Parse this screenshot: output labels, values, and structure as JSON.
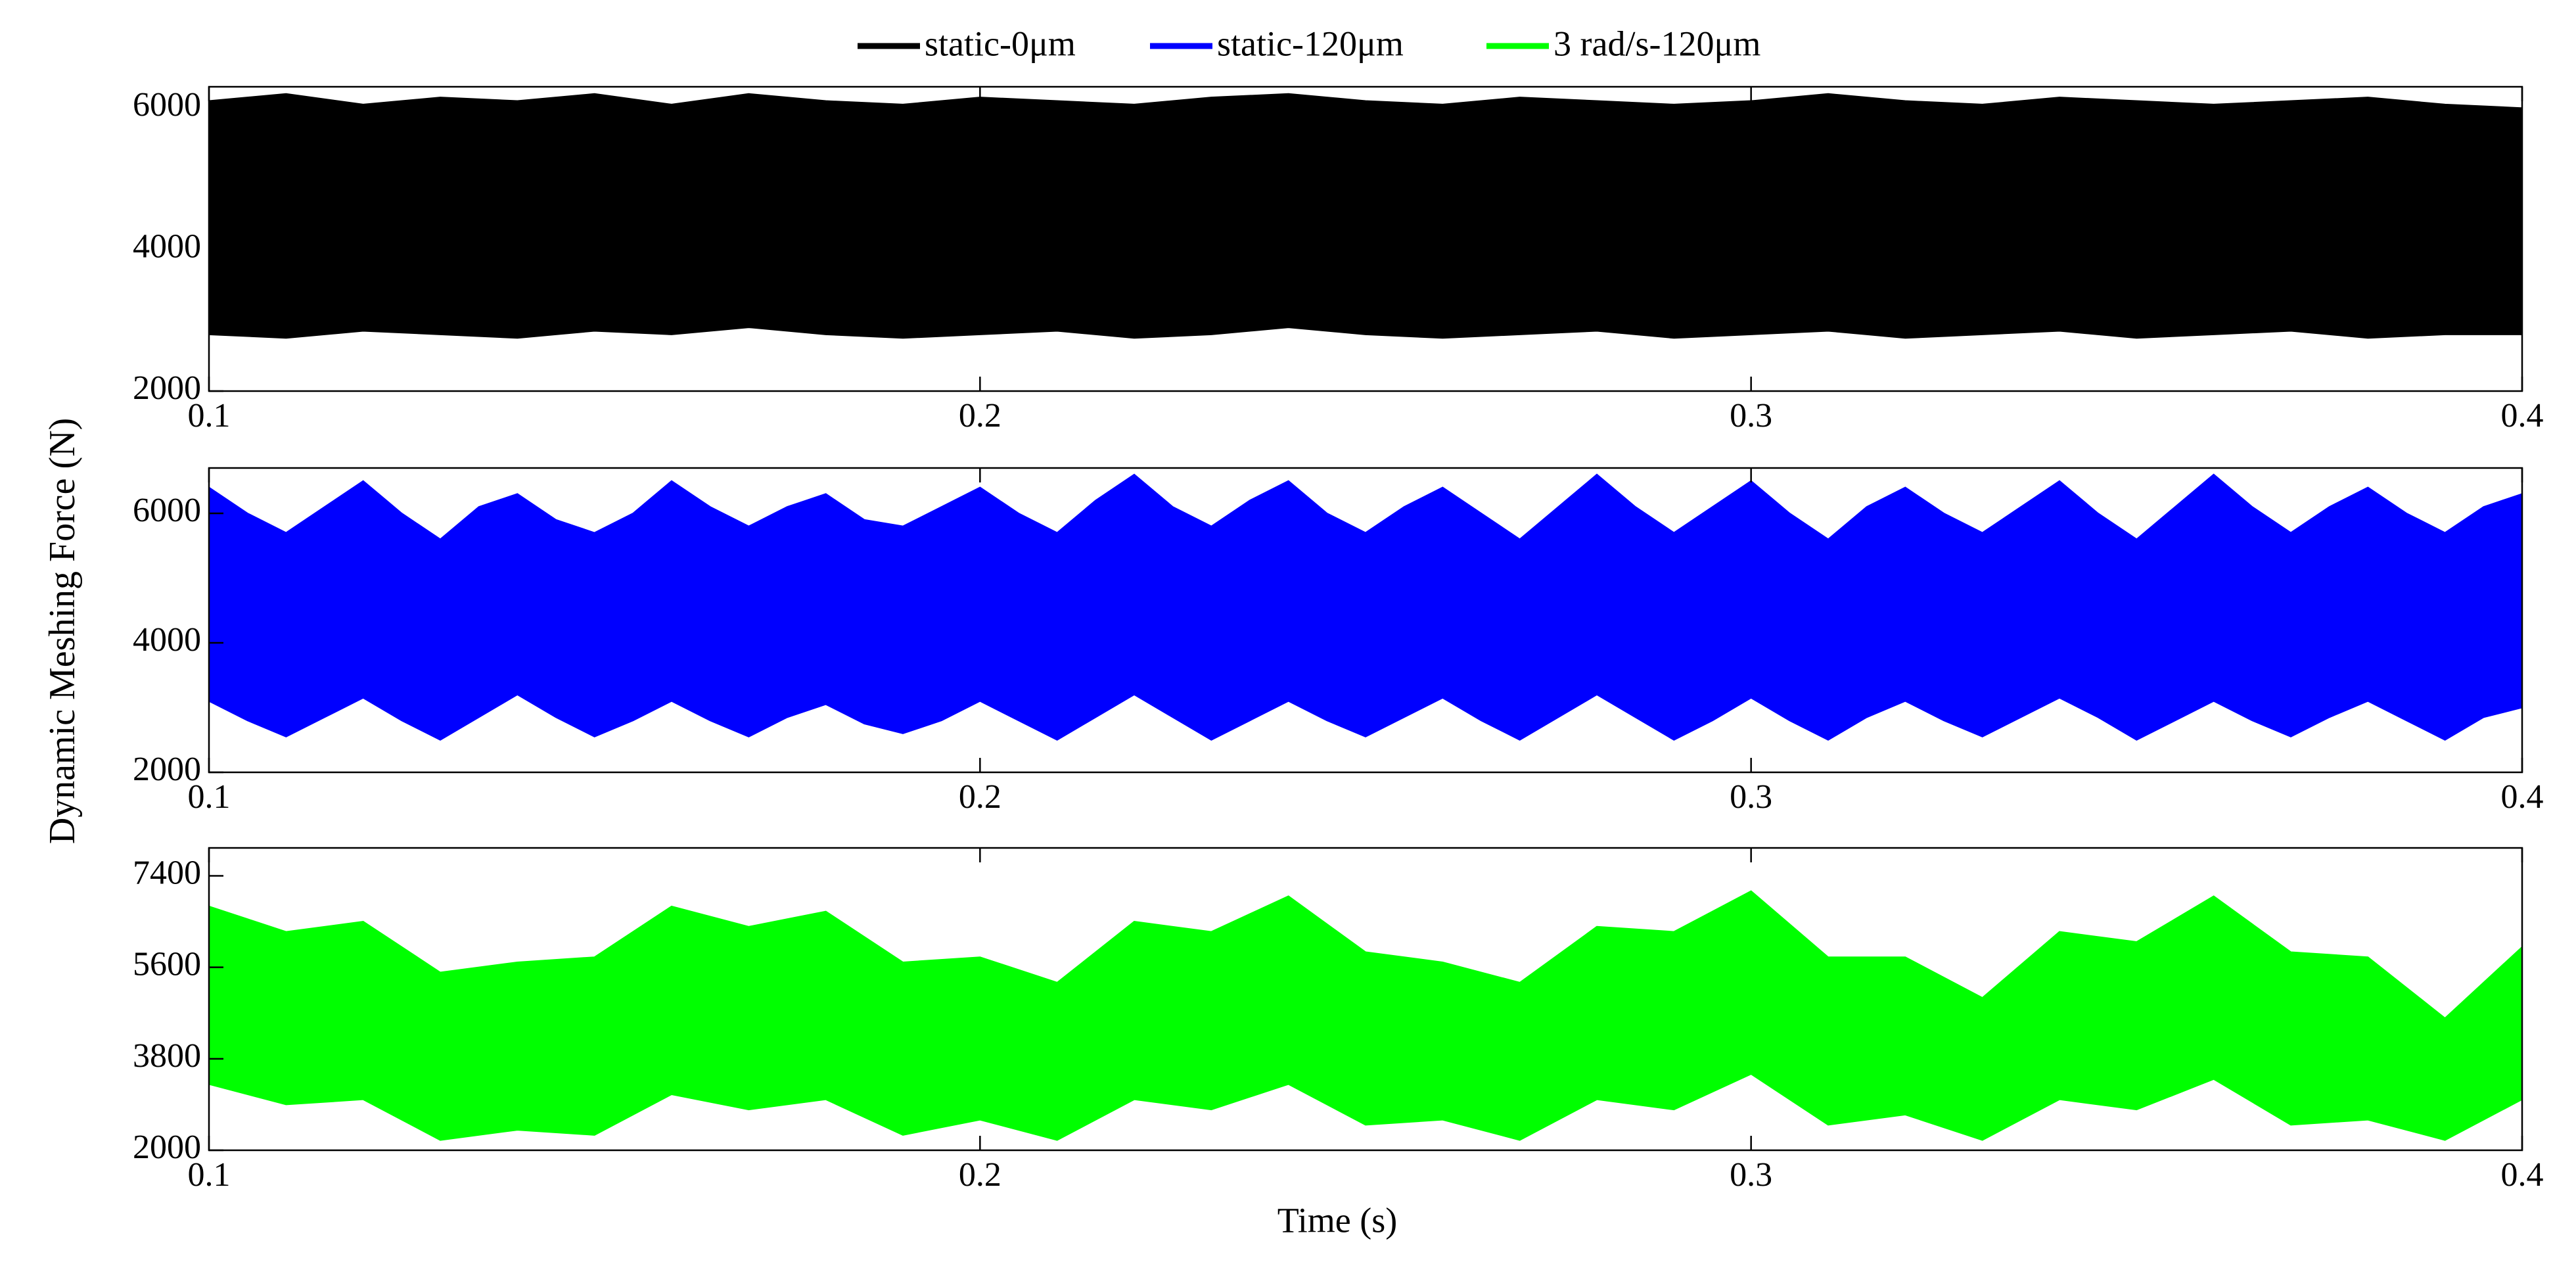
{
  "chart_data": [
    {
      "type": "range-area",
      "x": [
        0.1,
        0.11,
        0.12,
        0.13,
        0.14,
        0.15,
        0.16,
        0.17,
        0.18,
        0.19,
        0.2,
        0.21,
        0.22,
        0.23,
        0.24,
        0.25,
        0.26,
        0.27,
        0.28,
        0.29,
        0.3,
        0.31,
        0.32,
        0.33,
        0.34,
        0.35,
        0.36,
        0.37,
        0.38,
        0.39,
        0.4
      ],
      "series": [
        {
          "name": "static-0μm",
          "color": "#000000",
          "high": [
            6100,
            6200,
            6050,
            6150,
            6100,
            6200,
            6050,
            6200,
            6100,
            6050,
            6150,
            6100,
            6050,
            6150,
            6200,
            6100,
            6050,
            6150,
            6100,
            6050,
            6100,
            6200,
            6100,
            6050,
            6150,
            6100,
            6050,
            6100,
            6150,
            6050,
            6000
          ],
          "low": [
            2800,
            2750,
            2850,
            2800,
            2750,
            2850,
            2800,
            2900,
            2800,
            2750,
            2800,
            2850,
            2750,
            2800,
            2900,
            2800,
            2750,
            2800,
            2850,
            2750,
            2800,
            2850,
            2750,
            2800,
            2850,
            2750,
            2800,
            2850,
            2750,
            2800,
            2800
          ]
        }
      ],
      "xlim": [
        0.1,
        0.4
      ],
      "xticks": [
        0.1,
        0.2,
        0.3,
        0.4
      ],
      "ylim": [
        2000,
        6300
      ],
      "yticks": [
        2000,
        4000,
        6000
      ]
    },
    {
      "type": "range-area",
      "ylabel": "Dynamic Meshing Force (N)",
      "x": [
        0.1,
        0.105,
        0.11,
        0.115,
        0.12,
        0.125,
        0.13,
        0.135,
        0.14,
        0.145,
        0.15,
        0.155,
        0.16,
        0.165,
        0.17,
        0.175,
        0.18,
        0.185,
        0.19,
        0.195,
        0.2,
        0.205,
        0.21,
        0.215,
        0.22,
        0.225,
        0.23,
        0.235,
        0.24,
        0.245,
        0.25,
        0.255,
        0.26,
        0.265,
        0.27,
        0.275,
        0.28,
        0.285,
        0.29,
        0.295,
        0.3,
        0.305,
        0.31,
        0.315,
        0.32,
        0.325,
        0.33,
        0.335,
        0.34,
        0.345,
        0.35,
        0.355,
        0.36,
        0.365,
        0.37,
        0.375,
        0.38,
        0.385,
        0.39,
        0.395,
        0.4
      ],
      "series": [
        {
          "name": "static-120μm",
          "color": "#0000ff",
          "high": [
            6400,
            6000,
            5700,
            6100,
            6500,
            6000,
            5600,
            6100,
            6300,
            5900,
            5700,
            6000,
            6500,
            6100,
            5800,
            6100,
            6300,
            5900,
            5800,
            6100,
            6400,
            6000,
            5700,
            6200,
            6600,
            6100,
            5800,
            6200,
            6500,
            6000,
            5700,
            6100,
            6400,
            6000,
            5600,
            6100,
            6600,
            6100,
            5700,
            6100,
            6500,
            6000,
            5600,
            6100,
            6400,
            6000,
            5700,
            6100,
            6500,
            6000,
            5600,
            6100,
            6600,
            6100,
            5700,
            6100,
            6400,
            6000,
            5700,
            6100,
            6300
          ],
          "low": [
            3100,
            2800,
            2550,
            2850,
            3150,
            2800,
            2500,
            2850,
            3200,
            2850,
            2550,
            2800,
            3100,
            2800,
            2550,
            2850,
            3050,
            2750,
            2600,
            2800,
            3100,
            2800,
            2500,
            2850,
            3200,
            2850,
            2500,
            2800,
            3100,
            2800,
            2550,
            2850,
            3150,
            2800,
            2500,
            2850,
            3200,
            2850,
            2500,
            2800,
            3150,
            2800,
            2500,
            2850,
            3100,
            2800,
            2550,
            2850,
            3150,
            2850,
            2500,
            2800,
            3100,
            2800,
            2550,
            2850,
            3100,
            2800,
            2500,
            2850,
            3000
          ]
        }
      ],
      "xlim": [
        0.1,
        0.4
      ],
      "xticks": [
        0.1,
        0.2,
        0.3,
        0.4
      ],
      "ylim": [
        2000,
        6700
      ],
      "yticks": [
        2000,
        4000,
        6000
      ]
    },
    {
      "type": "range-area",
      "xlabel": "Time (s)",
      "x": [
        0.1,
        0.11,
        0.12,
        0.13,
        0.14,
        0.15,
        0.16,
        0.17,
        0.18,
        0.19,
        0.2,
        0.21,
        0.22,
        0.23,
        0.24,
        0.25,
        0.26,
        0.27,
        0.28,
        0.29,
        0.3,
        0.31,
        0.32,
        0.33,
        0.34,
        0.35,
        0.36,
        0.37,
        0.38,
        0.39,
        0.4
      ],
      "series": [
        {
          "name": "3 rad/s-120μm",
          "color": "#00ff00",
          "high": [
            6800,
            6300,
            6500,
            5500,
            5700,
            5800,
            6800,
            6400,
            6700,
            5700,
            5800,
            5300,
            6500,
            6300,
            7000,
            5900,
            5700,
            5300,
            6400,
            6300,
            7100,
            5800,
            5800,
            5000,
            6300,
            6100,
            7000,
            5900,
            5800,
            4600,
            6000
          ],
          "low": [
            3300,
            2900,
            3000,
            2200,
            2400,
            2300,
            3100,
            2800,
            3000,
            2300,
            2600,
            2200,
            3000,
            2800,
            3300,
            2500,
            2600,
            2200,
            3000,
            2800,
            3500,
            2500,
            2700,
            2200,
            3000,
            2800,
            3400,
            2500,
            2600,
            2200,
            3000
          ]
        }
      ],
      "xlim": [
        0.1,
        0.4
      ],
      "xticks": [
        0.1,
        0.2,
        0.3,
        0.4
      ],
      "ylim": [
        2000,
        7950
      ],
      "yticks": [
        2000,
        3800,
        5600,
        7400
      ]
    }
  ]
}
